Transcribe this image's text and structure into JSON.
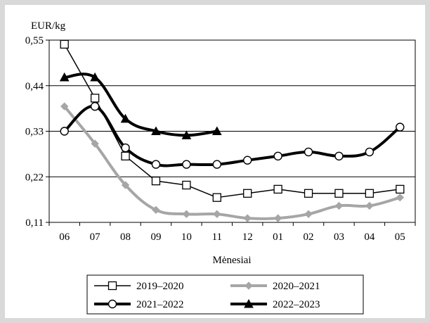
{
  "chart_data": {
    "type": "line",
    "title": "",
    "ylabel": "EUR/kg",
    "xlabel": "Mėnesiai",
    "ylim": [
      0.11,
      0.55
    ],
    "yticks": [
      "0,11",
      "0,22",
      "0,33",
      "0,44",
      "0,55"
    ],
    "yticks_values": [
      0.11,
      0.22,
      0.33,
      0.44,
      0.55
    ],
    "categories": [
      "06",
      "07",
      "08",
      "09",
      "10",
      "11",
      "12",
      "01",
      "02",
      "03",
      "04",
      "05"
    ],
    "grid": "horizontal",
    "legend_position": "bottom",
    "series": [
      {
        "name": "2019–2020",
        "marker": "square-open",
        "color": "#000000",
        "width": 1.5,
        "values": [
          0.54,
          0.41,
          0.27,
          0.21,
          0.2,
          0.17,
          0.18,
          0.19,
          0.18,
          0.18,
          0.18,
          0.19
        ]
      },
      {
        "name": "2020–2021",
        "marker": "diamond",
        "color": "#a6a6a6",
        "width": 4,
        "values": [
          0.39,
          0.3,
          0.2,
          0.14,
          0.13,
          0.13,
          0.12,
          0.12,
          0.13,
          0.15,
          0.15,
          0.17
        ]
      },
      {
        "name": "2021–2022",
        "marker": "circle-open",
        "color": "#000000",
        "width": 4,
        "values": [
          0.33,
          0.39,
          0.29,
          0.25,
          0.25,
          0.25,
          0.26,
          0.27,
          0.28,
          0.27,
          0.28,
          0.34
        ]
      },
      {
        "name": "2022–2023",
        "marker": "triangle",
        "color": "#000000",
        "width": 4,
        "values": [
          0.46,
          0.46,
          0.36,
          0.33,
          0.32,
          0.33,
          null,
          null,
          null,
          null,
          null,
          null
        ]
      }
    ]
  }
}
